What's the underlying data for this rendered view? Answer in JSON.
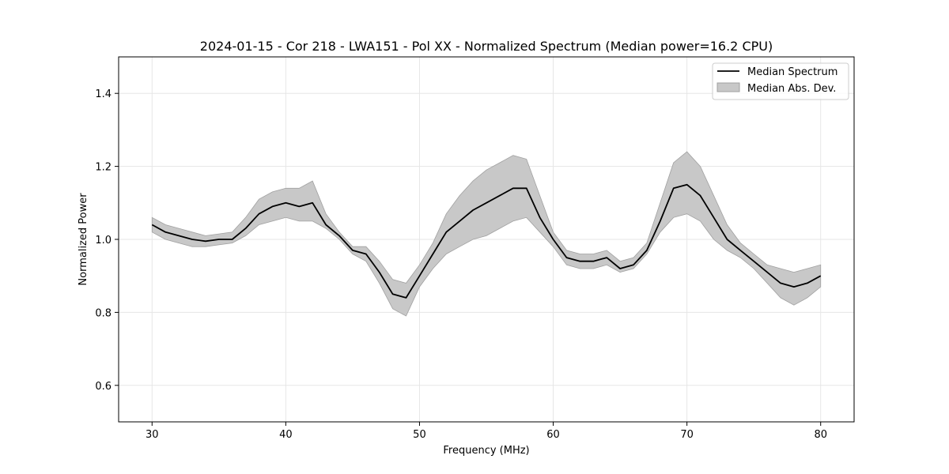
{
  "chart_data": {
    "type": "line",
    "title": "2024-01-15 - Cor 218 - LWA151 - Pol XX - Normalized Spectrum (Median power=16.2 CPU)",
    "xlabel": "Frequency (MHz)",
    "ylabel": "Normalized Power",
    "xlim": [
      27.5,
      82.5
    ],
    "ylim": [
      0.5,
      1.5
    ],
    "xticks": [
      30,
      40,
      50,
      60,
      70,
      80
    ],
    "yticks": [
      0.6,
      0.8,
      1.0,
      1.2,
      1.4
    ],
    "xtick_labels": [
      "30",
      "40",
      "50",
      "60",
      "70",
      "80"
    ],
    "ytick_labels": [
      "0.6",
      "0.8",
      "1.0",
      "1.2",
      "1.4"
    ],
    "grid": true,
    "legend_position": "top-right",
    "legend": [
      "Median Spectrum",
      "Median Abs. Dev."
    ],
    "colors": {
      "line": "#000000",
      "band": "#c8c8c8",
      "band_edge": "#a0a0a0",
      "grid": "#e6e6e6"
    },
    "x": [
      30,
      31,
      32,
      33,
      34,
      35,
      36,
      37,
      38,
      39,
      40,
      41,
      42,
      43,
      44,
      45,
      46,
      47,
      48,
      49,
      50,
      51,
      52,
      53,
      54,
      55,
      56,
      57,
      58,
      59,
      60,
      61,
      62,
      63,
      64,
      65,
      66,
      67,
      68,
      69,
      70,
      71,
      72,
      73,
      74,
      75,
      76,
      77,
      78,
      79,
      80
    ],
    "series": [
      {
        "name": "Median Spectrum",
        "values": [
          1.04,
          1.02,
          1.01,
          1.0,
          0.995,
          1.0,
          1.0,
          1.03,
          1.07,
          1.09,
          1.1,
          1.09,
          1.1,
          1.04,
          1.01,
          0.97,
          0.96,
          0.91,
          0.85,
          0.84,
          0.9,
          0.96,
          1.02,
          1.05,
          1.08,
          1.1,
          1.12,
          1.14,
          1.14,
          1.06,
          1.0,
          0.95,
          0.94,
          0.94,
          0.95,
          0.92,
          0.93,
          0.97,
          1.05,
          1.14,
          1.15,
          1.12,
          1.06,
          1.0,
          0.97,
          0.94,
          0.91,
          0.88,
          0.87,
          0.88,
          0.9
        ]
      },
      {
        "name": "Median Abs. Dev.",
        "lower": [
          1.02,
          1.0,
          0.99,
          0.98,
          0.98,
          0.985,
          0.99,
          1.01,
          1.04,
          1.05,
          1.06,
          1.05,
          1.05,
          1.03,
          1.0,
          0.96,
          0.94,
          0.88,
          0.81,
          0.79,
          0.87,
          0.92,
          0.96,
          0.98,
          1.0,
          1.01,
          1.03,
          1.05,
          1.06,
          1.02,
          0.98,
          0.93,
          0.92,
          0.92,
          0.93,
          0.91,
          0.92,
          0.96,
          1.02,
          1.06,
          1.07,
          1.05,
          1.0,
          0.97,
          0.95,
          0.92,
          0.88,
          0.84,
          0.82,
          0.84,
          0.87
        ],
        "upper": [
          1.06,
          1.04,
          1.03,
          1.02,
          1.01,
          1.015,
          1.02,
          1.06,
          1.11,
          1.13,
          1.14,
          1.14,
          1.16,
          1.07,
          1.02,
          0.98,
          0.98,
          0.94,
          0.89,
          0.88,
          0.93,
          0.99,
          1.07,
          1.12,
          1.16,
          1.19,
          1.21,
          1.23,
          1.22,
          1.12,
          1.02,
          0.97,
          0.96,
          0.96,
          0.97,
          0.94,
          0.95,
          0.99,
          1.1,
          1.21,
          1.24,
          1.2,
          1.12,
          1.04,
          0.99,
          0.96,
          0.93,
          0.92,
          0.91,
          0.92,
          0.93
        ]
      }
    ]
  }
}
